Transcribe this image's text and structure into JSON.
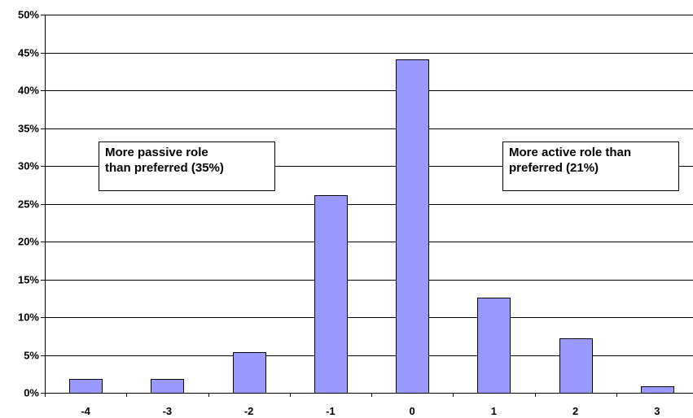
{
  "chart_data": {
    "type": "bar",
    "title": "",
    "xlabel": "",
    "ylabel": "",
    "categories": [
      "-4",
      "-3",
      "-2",
      "-1",
      "0",
      "1",
      "2",
      "3"
    ],
    "series": [
      {
        "values": [
          1.8,
          1.8,
          5.4,
          26.1,
          44.1,
          12.6,
          7.2,
          0.9
        ],
        "color": "#9999ff"
      }
    ],
    "ylim": [
      0,
      50
    ],
    "yticks": [
      0,
      5,
      10,
      15,
      20,
      25,
      30,
      35,
      40,
      45,
      50
    ],
    "ytick_format": "percent",
    "grid": true,
    "legend": "none",
    "annotations": [
      {
        "text": "More passive role\nthan preferred (35%)"
      },
      {
        "text": "More active role than\npreferred (21%)"
      }
    ]
  }
}
